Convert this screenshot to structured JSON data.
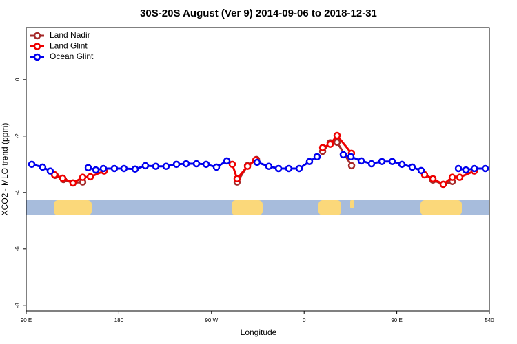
{
  "chart_data": {
    "type": "line",
    "title": "30S-20S August (Ver 9)   2014-09-06 to 2018-12-31",
    "xlabel": "Longitude",
    "ylabel": "XCO2 - MLO trend (ppm)",
    "xlim": [
      90,
      540
    ],
    "ylim": [
      -8.2,
      1.85
    ],
    "xticks": [
      {
        "value": 90,
        "label": "90 E"
      },
      180,
      {
        "value": 270,
        "label": "90 W"
      },
      {
        "value": 360,
        "label": "0"
      },
      {
        "value": 450,
        "label": "90 E"
      },
      540
    ],
    "yticks": [
      0,
      -2,
      -4,
      -6,
      -8
    ],
    "legend": "top-left",
    "series": [
      {
        "name": "Land Nadir",
        "color": "#a52a2a",
        "x": [
          118.1,
          126.2,
          135.5,
          144.9,
          null,
          294.9,
          305,
          313.7,
          null,
          378,
          385.3,
          392,
          406.1,
          null,
          485.1,
          495.1,
          503.9
        ],
        "values": [
          -3.39,
          -3.54,
          -3.66,
          -3.63,
          null,
          -3.63,
          -3.05,
          -2.83,
          null,
          -2.54,
          -2.24,
          -2.22,
          -3.05,
          null,
          -3.56,
          -3.71,
          -3.61
        ]
      },
      {
        "name": "Land Glint",
        "color": "#ee0000",
        "x": [
          117.5,
          125.5,
          135.5,
          144.9,
          152.3,
          165.7,
          null,
          290.2,
          294.9,
          305,
          313,
          null,
          378,
          385.3,
          392,
          406,
          null,
          477,
          485.1,
          495.1,
          503.9,
          511.2,
          525.3
        ],
        "values": [
          -3.37,
          -3.49,
          -3.66,
          -3.46,
          -3.44,
          -3.24,
          null,
          -3.0,
          -3.51,
          -3.07,
          -2.85,
          null,
          -2.41,
          -2.29,
          -1.98,
          -2.61,
          null,
          -3.37,
          -3.51,
          -3.71,
          -3.46,
          -3.46,
          -3.24
        ]
      },
      {
        "name": "Ocean Glint",
        "color": "#0000ee",
        "x": [
          95.4,
          106,
          113.4,
          null,
          150.3,
          157.6,
          165,
          175.7,
          185,
          195.8,
          205.8,
          215.9,
          225.9,
          236,
          245.4,
          255.4,
          264.8,
          274.8,
          284.9,
          null,
          314.3,
          325.7,
          335.1,
          345.1,
          355.2,
          365.2,
          372.6,
          null,
          398,
          405.4,
          415.5,
          425.5,
          435.5,
          445.6,
          455,
          465,
          473.7,
          null,
          509.9,
          517.2,
          525.3,
          536
        ],
        "values": [
          -3.0,
          -3.1,
          -3.24,
          null,
          -3.12,
          -3.2,
          -3.15,
          -3.15,
          -3.15,
          -3.17,
          -3.05,
          -3.07,
          -3.07,
          -3.0,
          -2.98,
          -2.98,
          -3.0,
          -3.1,
          -2.88,
          null,
          -2.93,
          -3.07,
          -3.15,
          -3.15,
          -3.15,
          -2.9,
          -2.73,
          null,
          -2.66,
          -2.73,
          -2.88,
          -2.98,
          -2.9,
          -2.9,
          -3.0,
          -3.1,
          -3.22,
          null,
          -3.15,
          -3.2,
          -3.15,
          -3.15
        ]
      }
    ]
  }
}
